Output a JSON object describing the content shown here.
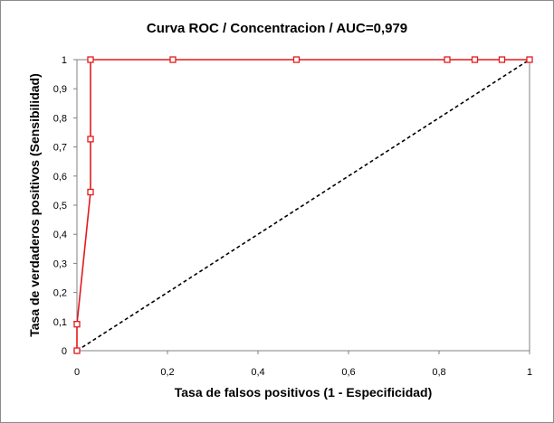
{
  "chart_data": {
    "type": "line",
    "title": "Curva ROC / Concentracion / AUC=0,979",
    "xlabel": "Tasa de falsos positivos (1 - Especificidad)",
    "ylabel": "Tasa de verdaderos positivos (Sensibilidad)",
    "xlim": [
      0,
      1
    ],
    "ylim": [
      0,
      1
    ],
    "x_ticks": [
      "0",
      "0,2",
      "0,4",
      "0,6",
      "0,8",
      "1"
    ],
    "y_ticks": [
      "0",
      "0,1",
      "0,2",
      "0,3",
      "0,4",
      "0,5",
      "0,6",
      "0,7",
      "0,8",
      "0,9",
      "1"
    ],
    "grid": false,
    "series": [
      {
        "color": "#e31a1c",
        "marker": "square-open",
        "points": [
          [
            0,
            0
          ],
          [
            0,
            0.091
          ],
          [
            0.03,
            0.545
          ],
          [
            0.03,
            0.727
          ],
          [
            0.03,
            1
          ],
          [
            0.212,
            1
          ],
          [
            0.485,
            1
          ],
          [
            0.818,
            1
          ],
          [
            0.879,
            1
          ],
          [
            0.939,
            1
          ],
          [
            1,
            1
          ]
        ]
      },
      {
        "color": "#000000",
        "style": "dashed",
        "points": [
          [
            0,
            0
          ],
          [
            1,
            1
          ]
        ]
      }
    ]
  }
}
